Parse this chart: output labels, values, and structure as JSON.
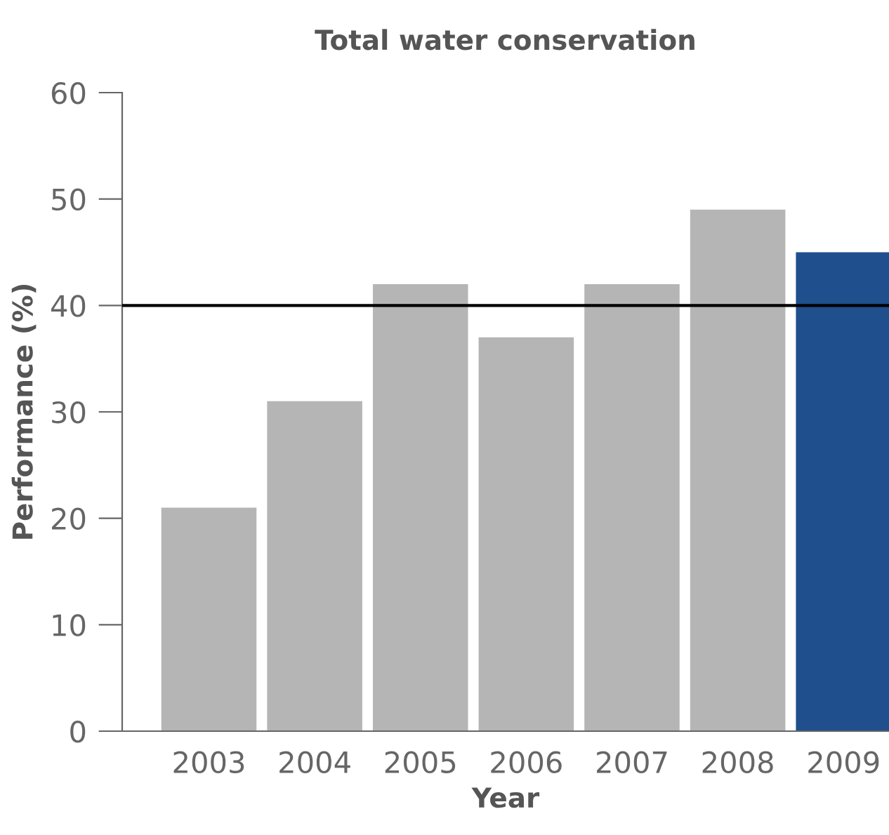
{
  "chart_data": {
    "type": "bar",
    "title": "Total water conservation",
    "xlabel": "Year",
    "ylabel": "Performance (%)",
    "categories": [
      "2003",
      "2004",
      "2005",
      "2006",
      "2007",
      "2008",
      "2009"
    ],
    "values": [
      21,
      31,
      42,
      37,
      42,
      49,
      45
    ],
    "colors": [
      "#b5b5b5",
      "#b5b5b5",
      "#b5b5b5",
      "#b5b5b5",
      "#b5b5b5",
      "#b5b5b5",
      "#1f4f8c"
    ],
    "ylim": [
      0,
      60
    ],
    "yticks": [
      0,
      10,
      20,
      30,
      40,
      50,
      60
    ],
    "grid": false,
    "legend": false,
    "ref_lines": [
      {
        "axis": "y",
        "value": 40,
        "color": "#000000"
      }
    ]
  }
}
